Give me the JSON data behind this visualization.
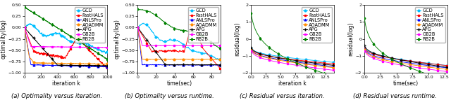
{
  "captions": [
    "(a) Optimality versus iteration.",
    "(b) Optimality versus runtime.",
    "(c) Residual versus iteration.",
    "(d) Residual versus runtime."
  ],
  "xlabels": [
    "iteration k",
    "time(sec)",
    "iteration k",
    "time(sec)"
  ],
  "ylabels": [
    "optimality(log)",
    "optimality(log)",
    "residual(log)",
    "residual(log)"
  ],
  "legend_entries": [
    "GCD",
    "FastHALS",
    "ANLSPro",
    "AOADMM",
    "APG",
    "GB2B",
    "RB2B"
  ],
  "line_colors": {
    "GCD": "#00bfff",
    "FastHALS": "#ff0000",
    "ANLSPro": "#0000ff",
    "AOADMM": "#ff8c00",
    "APG": "#000000",
    "GB2B": "#ff00ff",
    "RB2B": "#008000"
  },
  "markers": {
    "GCD": "o",
    "FastHALS": "s",
    "ANLSPro": "^",
    "AOADMM": "o",
    "APG": "+",
    "GB2B": "s",
    "RB2B": "d"
  },
  "background": "#ffffff",
  "font_size": 5.5,
  "caption_font_size": 6.0,
  "legend_font_size": 4.8,
  "tick_font_size": 4.5
}
